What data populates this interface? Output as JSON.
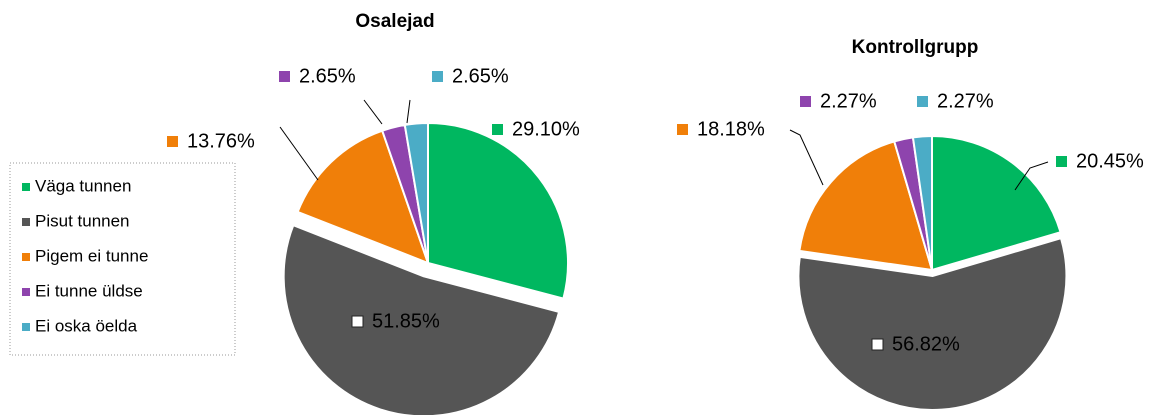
{
  "chart_data": [
    {
      "type": "pie",
      "title": "Osalejad",
      "categories": [
        "Väga tunnen",
        "Pisut tunnen",
        "Pigem ei tunne",
        "Ei tunne üldse",
        "Ei oska öelda"
      ],
      "values": [
        29.1,
        51.85,
        13.76,
        2.65,
        2.65
      ],
      "value_labels": [
        "29.10%",
        "51.85%",
        "13.76%",
        "2.65%",
        "2.65%"
      ],
      "colors": [
        "#00b760",
        "#555555",
        "#f07f09",
        "#8e44ad",
        "#4bacc6"
      ]
    },
    {
      "type": "pie",
      "title": "Kontrollgrupp",
      "categories": [
        "Väga tunnen",
        "Pisut tunnen",
        "Pigem ei tunne",
        "Ei tunne üldse",
        "Ei oska öelda"
      ],
      "values": [
        20.45,
        56.82,
        18.18,
        2.27,
        2.27
      ],
      "value_labels": [
        "20.45%",
        "56.82%",
        "18.18%",
        "2.27%",
        "2.27%"
      ],
      "colors": [
        "#00b760",
        "#555555",
        "#f07f09",
        "#8e44ad",
        "#4bacc6"
      ]
    }
  ]
}
